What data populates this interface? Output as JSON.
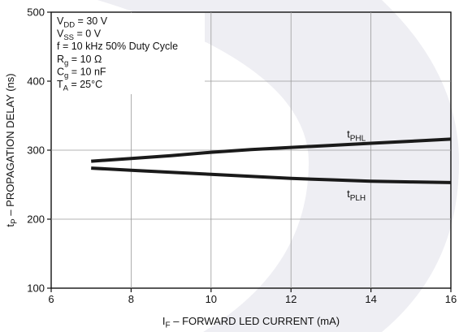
{
  "chart_data": {
    "type": "line",
    "xlabel": {
      "main": "I",
      "sub": "F",
      "rest": " – FORWARD LED CURRENT (mA)"
    },
    "ylabel": {
      "main": "t",
      "sub": "P",
      "rest": " – PROPAGATION DELAY (ns)"
    },
    "xlim": [
      6,
      16
    ],
    "ylim": [
      100,
      500
    ],
    "xticks": [
      6,
      8,
      10,
      12,
      14,
      16
    ],
    "yticks": [
      100,
      200,
      300,
      400,
      500
    ],
    "grid": true,
    "conditions": [
      {
        "main": "V",
        "sub": "DD",
        "rest": " = 30 V"
      },
      {
        "main": "V",
        "sub": "SS",
        "rest": " = 0 V"
      },
      {
        "main": "f = 10 kHz 50% Duty Cycle",
        "sub": "",
        "rest": ""
      },
      {
        "main": "R",
        "sub": "g",
        "rest": " = 10 Ω"
      },
      {
        "main": "C",
        "sub": "g",
        "rest": " = 10 nF"
      },
      {
        "main": "T",
        "sub": "A",
        "rest": " = 25°C"
      }
    ],
    "series": [
      {
        "name": "t_PHL",
        "label_main": "t",
        "label_sub": "PHL",
        "label_pos": [
          13.4,
          318
        ],
        "x": [
          7,
          8,
          9,
          10,
          11,
          12,
          13,
          14,
          15,
          16
        ],
        "y": [
          284,
          288,
          292,
          297,
          301,
          304,
          307,
          310,
          313,
          316
        ]
      },
      {
        "name": "t_PLH",
        "label_main": "t",
        "label_sub": "PLH",
        "label_pos": [
          13.4,
          232
        ],
        "x": [
          7,
          8,
          9,
          10,
          11,
          12,
          13,
          14,
          15,
          16
        ],
        "y": [
          274,
          271,
          268,
          265,
          262,
          259,
          257,
          255,
          254,
          253
        ]
      }
    ]
  }
}
